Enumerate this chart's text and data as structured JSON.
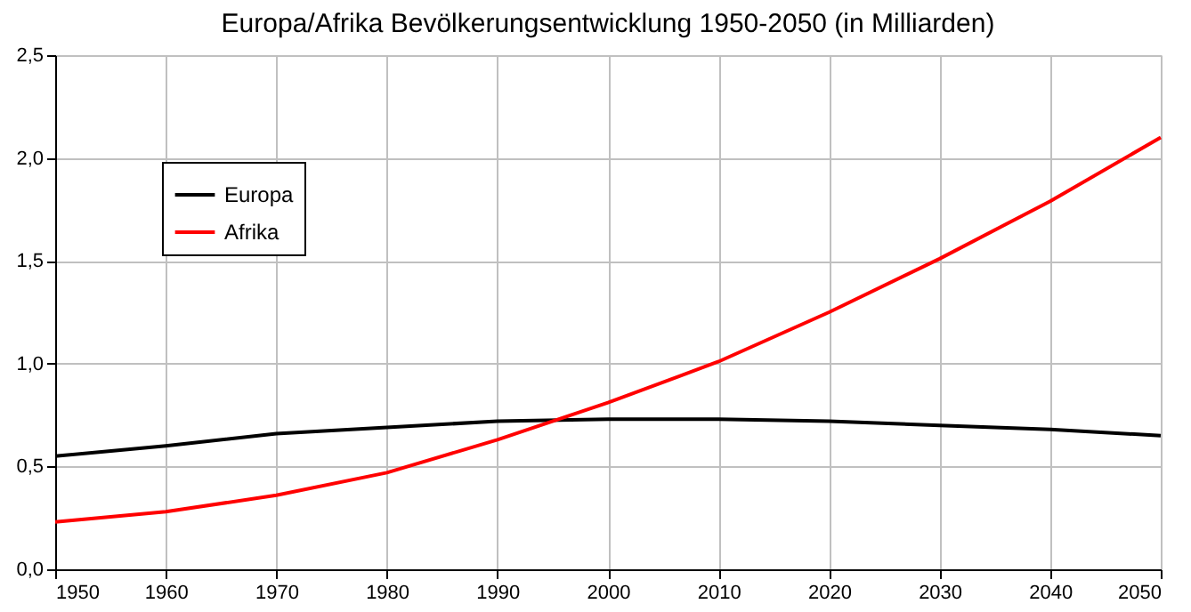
{
  "chart_data": {
    "type": "line",
    "title": "Europa/Afrika Bevölkerungsentwicklung 1950-2050 (in Milliarden)",
    "x": [
      1950,
      1960,
      1970,
      1980,
      1990,
      2000,
      2010,
      2020,
      2030,
      2040,
      2050
    ],
    "series": [
      {
        "name": "Europa",
        "color": "#000000",
        "values": [
          0.55,
          0.6,
          0.66,
          0.69,
          0.72,
          0.73,
          0.73,
          0.72,
          0.7,
          0.68,
          0.65
        ]
      },
      {
        "name": "Afrika",
        "color": "#ff0000",
        "values": [
          0.23,
          0.28,
          0.36,
          0.47,
          0.63,
          0.81,
          1.01,
          1.25,
          1.51,
          1.79,
          2.1
        ]
      }
    ],
    "xlim": [
      1950,
      2050
    ],
    "xticks": [
      1950,
      1960,
      1970,
      1980,
      1990,
      2000,
      2010,
      2020,
      2030,
      2040,
      2050
    ],
    "ylim": [
      0,
      2.5
    ],
    "yticks": [
      {
        "value": 0,
        "label": "0,0"
      },
      {
        "value": 0.5,
        "label": "0,5"
      },
      {
        "value": 1,
        "label": "1,0"
      },
      {
        "value": 1.5,
        "label": "1,5"
      },
      {
        "value": 2,
        "label": "2,0"
      },
      {
        "value": 2.5,
        "label": "2,5"
      }
    ],
    "grid": true,
    "legend": "top left",
    "marker": "none",
    "line_style": "solid"
  }
}
